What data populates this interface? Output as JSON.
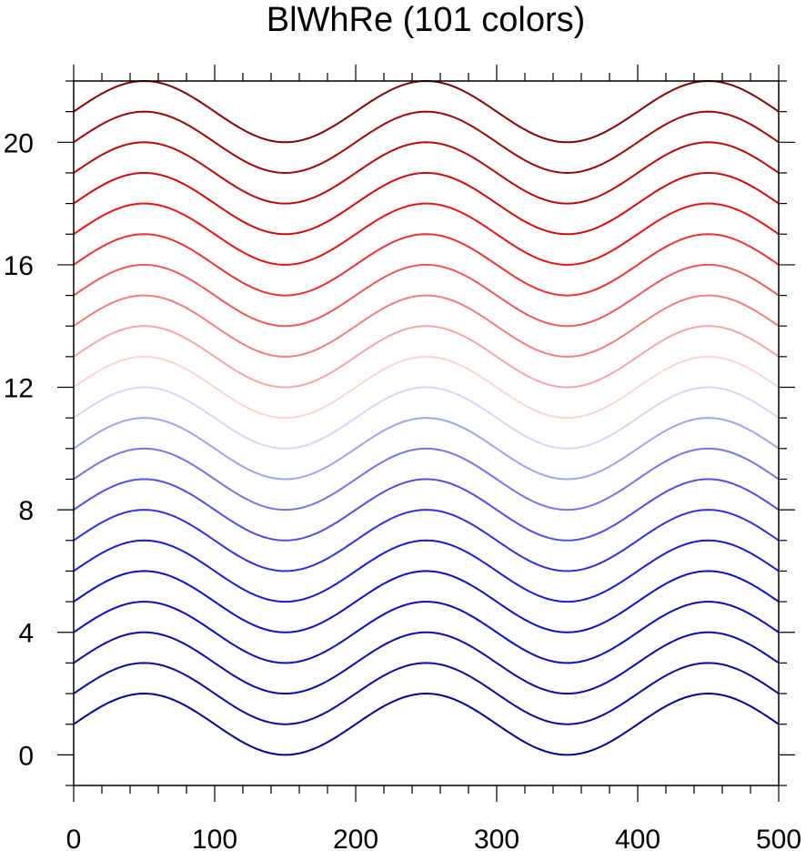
{
  "chart_data": {
    "type": "line",
    "title": "BlWhRe (101 colors)",
    "xlabel": "",
    "ylabel": "",
    "xlim": [
      0,
      500
    ],
    "ylim": [
      -1,
      22
    ],
    "xticks": [
      0,
      100,
      200,
      300,
      400,
      500
    ],
    "xtick_labels": [
      "0",
      "100",
      "200",
      "300",
      "400",
      "500"
    ],
    "yticks": [
      0,
      4,
      8,
      12,
      16,
      20
    ],
    "ytick_labels": [
      "0",
      "4",
      "8",
      "12",
      "16",
      "20"
    ],
    "grid": false,
    "legend": "none",
    "curve": "y = offset + 1 + sin(2*pi*(x - 0)/200)",
    "x_samples": [
      0,
      25,
      50,
      75,
      100,
      125,
      150,
      175,
      200,
      225,
      250,
      275,
      300,
      325,
      350,
      375,
      400,
      425,
      450,
      475,
      500
    ],
    "series": [
      {
        "offset": 0,
        "color": "#00008b",
        "values": [
          1,
          1.707,
          2,
          1.707,
          1,
          0.293,
          0,
          0.293,
          1,
          1.707,
          2,
          1.707,
          1,
          0.293,
          0,
          0.293,
          1,
          1.707,
          2,
          1.707,
          1
        ]
      },
      {
        "offset": 1,
        "color": "#0a0a96"
      },
      {
        "offset": 2,
        "color": "#0a0aa8"
      },
      {
        "offset": 3,
        "color": "#0c0cb8"
      },
      {
        "offset": 4,
        "color": "#0d0dc6"
      },
      {
        "offset": 5,
        "color": "#1a1ad2"
      },
      {
        "offset": 6,
        "color": "#3030dc"
      },
      {
        "offset": 7,
        "color": "#5050e2"
      },
      {
        "offset": 8,
        "color": "#7575e6"
      },
      {
        "offset": 9,
        "color": "#a2a2ee"
      },
      {
        "offset": 10,
        "color": "#d6d6f6"
      },
      {
        "offset": 11,
        "color": "#f8d6d6"
      },
      {
        "offset": 12,
        "color": "#f3a8a8"
      },
      {
        "offset": 13,
        "color": "#ef8080"
      },
      {
        "offset": 14,
        "color": "#ec5a5a"
      },
      {
        "offset": 15,
        "color": "#e83434"
      },
      {
        "offset": 16,
        "color": "#e31616"
      },
      {
        "offset": 17,
        "color": "#cc0c0c"
      },
      {
        "offset": 18,
        "color": "#b40a0a"
      },
      {
        "offset": 19,
        "color": "#990707"
      },
      {
        "offset": 20,
        "color": "#7e0505"
      }
    ]
  }
}
